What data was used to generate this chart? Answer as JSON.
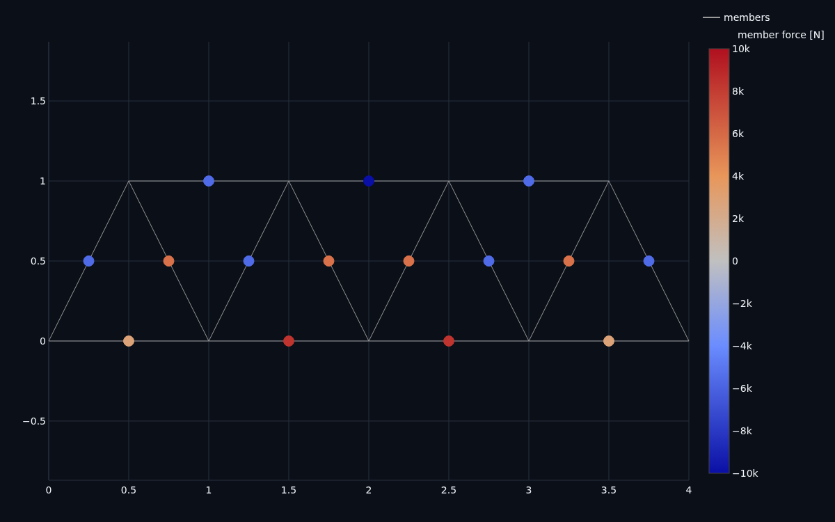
{
  "chart_data": {
    "type": "scatter",
    "xlim": [
      0,
      4
    ],
    "ylim": [
      -0.87,
      1.87
    ],
    "xticks": [
      0,
      0.5,
      1,
      1.5,
      2,
      2.5,
      3,
      3.5,
      4
    ],
    "yticks": [
      {
        "value": -0.5,
        "label": "−0.5"
      },
      0,
      0.5,
      1,
      1.5
    ],
    "grid": true,
    "legend": "top right",
    "marker": "circle",
    "clabel": "member force [N]",
    "clim": [
      -10000,
      10000
    ],
    "cticks": [
      {
        "value": -10000,
        "label": "−10k"
      },
      {
        "value": -8000,
        "label": "−8k"
      },
      {
        "value": -6000,
        "label": "−6k"
      },
      {
        "value": -4000,
        "label": "−4k"
      },
      {
        "value": -2000,
        "label": "−2k"
      },
      0,
      {
        "value": 2000,
        "label": "2k"
      },
      {
        "value": 4000,
        "label": "4k"
      },
      {
        "value": 6000,
        "label": "6k"
      },
      {
        "value": 8000,
        "label": "8k"
      },
      {
        "value": 10000,
        "label": "10k"
      }
    ],
    "series": [
      {
        "name": "members",
        "type": "line",
        "color": "#9a9a9a",
        "marker": "none",
        "x": [
          0.5,
          3.5,
          4,
          0,
          0.5,
          1,
          1.5,
          2,
          2.5,
          3,
          3.5
        ],
        "values": [
          1,
          1,
          0,
          0,
          1,
          0,
          1,
          0,
          1,
          0,
          1
        ]
      },
      {
        "colors": [
          "#506be7",
          "#d9724a",
          "#506be7",
          "#d9724a",
          "#d9724a",
          "#506be7",
          "#d9724a",
          "#506be7",
          "#dca379",
          "#bf342f",
          "#bf342f",
          "#dca379",
          "#506be7",
          "#0a0fa5",
          "#506be7"
        ],
        "x": [
          0.25,
          0.75,
          1.25,
          1.75,
          2.25,
          2.75,
          3.25,
          3.75,
          0.5,
          1.5,
          2.5,
          3.5,
          1,
          2,
          3
        ],
        "values": [
          0.5,
          0.5,
          0.5,
          0.5,
          0.5,
          0.5,
          0.5,
          0.5,
          0,
          0,
          0,
          0,
          1,
          1,
          1
        ],
        "cvalues": [
          -5600,
          5600,
          -5600,
          5600,
          5600,
          -5600,
          5600,
          -5600,
          2800,
          8400,
          8400,
          2800,
          -5600,
          -10000,
          -5600
        ]
      }
    ]
  }
}
